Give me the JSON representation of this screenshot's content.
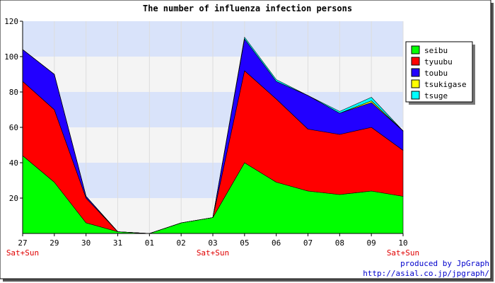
{
  "chart_data": {
    "type": "area",
    "stacked": true,
    "title": "The number of influenza infection persons",
    "categories": [
      "27",
      "29",
      "30",
      "31",
      "01",
      "02",
      "03",
      "05",
      "06",
      "07",
      "08",
      "09",
      "10"
    ],
    "weekend_marks": [
      {
        "category": "27",
        "label": "Sat+Sun"
      },
      {
        "category": "03",
        "label": "Sat+Sun"
      },
      {
        "category": "10",
        "label": "Sat+Sun"
      }
    ],
    "series": [
      {
        "name": "seibu",
        "color": "#00ff00",
        "values": [
          44,
          29,
          6,
          1,
          0,
          6,
          9,
          40,
          29,
          24,
          22,
          24,
          21
        ]
      },
      {
        "name": "tyuubu",
        "color": "#ff0000",
        "values": [
          42,
          41,
          14,
          0,
          0,
          0,
          0,
          52,
          47,
          35,
          34,
          36,
          26
        ]
      },
      {
        "name": "toubu",
        "color": "#2200ff",
        "values": [
          18,
          20,
          1,
          0,
          0,
          0,
          0,
          18,
          10,
          19,
          12,
          14,
          11
        ]
      },
      {
        "name": "tsukigase",
        "color": "#ffff00",
        "values": [
          0,
          0,
          0,
          0,
          0,
          0,
          0,
          0,
          0,
          0,
          0,
          1,
          0
        ]
      },
      {
        "name": "tsuge",
        "color": "#00ffff",
        "values": [
          0,
          0,
          0,
          0,
          0,
          0,
          0,
          1,
          1,
          0,
          1,
          2,
          0
        ]
      }
    ],
    "y_ticks": [
      20,
      40,
      60,
      80,
      100,
      120
    ],
    "ylim": [
      0,
      120
    ],
    "grid": true,
    "legend_position": "right"
  },
  "credits": {
    "line1": "produced by JpGraph",
    "line2": "http://asial.co.jp/jpgraph/"
  }
}
